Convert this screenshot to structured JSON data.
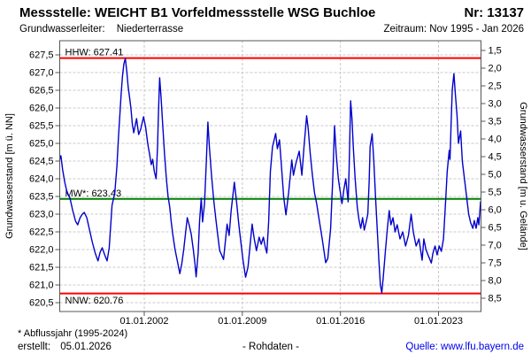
{
  "header": {
    "title": "Messstelle: WEICHT B1 Vorfeldmessstelle WSG Buchloe",
    "number": "Nr: 13137",
    "aquifer_label": "Grundwasserleiter:",
    "aquifer_value": "Niederterrasse",
    "period": "Zeitraum: Nov 1995 - Jan 2026"
  },
  "footer": {
    "footnote": "* Abflussjahr (1995-2024)",
    "created_label": "erstellt:",
    "created_date": "05.01.2026",
    "data_type": "- Rohdaten -",
    "source_label": "Quelle:",
    "source_url": "www.lfu.bayern.de"
  },
  "colors": {
    "curve": "#0000cc",
    "extreme_line": "#ff0000",
    "mean_line": "#008000",
    "grid": "#c8c8c8",
    "frame": "#555555",
    "source_link": "#0000ee"
  },
  "chart_data": {
    "type": "line",
    "ylabel_left": "Grundwasserstand [m ü. NN]",
    "ylabel_right": "Grundwasserstand [m u. Gelände]",
    "xlim": [
      1995.97,
      2026.03
    ],
    "ylim_left": [
      620.25,
      627.9
    ],
    "grid": true,
    "x_ticks": [
      {
        "t": 2002.0,
        "label": "01.01.2002"
      },
      {
        "t": 2009.0,
        "label": "01.01.2009"
      },
      {
        "t": 2016.0,
        "label": "01.01.2016"
      },
      {
        "t": 2023.0,
        "label": "01.01.2023"
      }
    ],
    "y_left_ticks": [
      {
        "v": 627.5,
        "label": "627,5"
      },
      {
        "v": 627.0,
        "label": "627,0"
      },
      {
        "v": 626.5,
        "label": "626,5"
      },
      {
        "v": 626.0,
        "label": "626,0"
      },
      {
        "v": 625.5,
        "label": "625,5"
      },
      {
        "v": 625.0,
        "label": "625,0"
      },
      {
        "v": 624.5,
        "label": "624,5"
      },
      {
        "v": 624.0,
        "label": "624,0"
      },
      {
        "v": 623.5,
        "label": "623,5"
      },
      {
        "v": 623.0,
        "label": "623,0"
      },
      {
        "v": 622.5,
        "label": "622,5"
      },
      {
        "v": 622.0,
        "label": "622,0"
      },
      {
        "v": 621.5,
        "label": "621,5"
      },
      {
        "v": 621.0,
        "label": "621,0"
      },
      {
        "v": 620.5,
        "label": "620,5"
      }
    ],
    "y_right_ticks": [
      {
        "v": 1.5,
        "label": "1,5"
      },
      {
        "v": 2.0,
        "label": "2,0"
      },
      {
        "v": 2.5,
        "label": "2,5"
      },
      {
        "v": 3.0,
        "label": "3,0"
      },
      {
        "v": 3.5,
        "label": "3,5"
      },
      {
        "v": 4.0,
        "label": "4,0"
      },
      {
        "v": 4.5,
        "label": "4,5"
      },
      {
        "v": 5.0,
        "label": "5,0"
      },
      {
        "v": 5.5,
        "label": "5,5"
      },
      {
        "v": 6.0,
        "label": "6,0"
      },
      {
        "v": 6.5,
        "label": "6,5"
      },
      {
        "v": 7.0,
        "label": "7,0"
      },
      {
        "v": 7.5,
        "label": "7,5"
      },
      {
        "v": 8.0,
        "label": "8,0"
      },
      {
        "v": 8.5,
        "label": "8,5"
      }
    ],
    "reference_lines": [
      {
        "name": "hhw",
        "label": "HHW: 627.41",
        "value": 627.41,
        "color": "#ff0000",
        "label_above": true
      },
      {
        "name": "mw",
        "label": "MW*: 623.43",
        "value": 623.43,
        "color": "#008000",
        "label_above": true
      },
      {
        "name": "nnw",
        "label": "NNW: 620.76",
        "value": 620.76,
        "color": "#ff0000",
        "label_above": false
      }
    ],
    "series": [
      {
        "name": "Grundwasserstand Rohdaten",
        "color": "#0000cc",
        "points": [
          [
            1995.97,
            624.55
          ],
          [
            1996.05,
            624.65
          ],
          [
            1996.18,
            624.25
          ],
          [
            1996.33,
            623.9
          ],
          [
            1996.5,
            623.6
          ],
          [
            1996.7,
            623.45
          ],
          [
            1996.9,
            623.1
          ],
          [
            1997.1,
            622.8
          ],
          [
            1997.25,
            622.7
          ],
          [
            1997.42,
            622.9
          ],
          [
            1997.58,
            623.0
          ],
          [
            1997.72,
            623.05
          ],
          [
            1997.9,
            622.9
          ],
          [
            1998.1,
            622.55
          ],
          [
            1998.3,
            622.2
          ],
          [
            1998.5,
            621.9
          ],
          [
            1998.7,
            621.68
          ],
          [
            1998.85,
            621.92
          ],
          [
            1999.0,
            622.05
          ],
          [
            1999.18,
            621.85
          ],
          [
            1999.35,
            621.68
          ],
          [
            1999.5,
            622.05
          ],
          [
            1999.7,
            623.25
          ],
          [
            1999.9,
            623.6
          ],
          [
            2000.05,
            624.35
          ],
          [
            2000.15,
            625.1
          ],
          [
            2000.25,
            625.75
          ],
          [
            2000.35,
            626.4
          ],
          [
            2000.45,
            626.9
          ],
          [
            2000.55,
            627.25
          ],
          [
            2000.65,
            627.4
          ],
          [
            2000.75,
            627.05
          ],
          [
            2000.85,
            626.6
          ],
          [
            2000.95,
            626.3
          ],
          [
            2001.05,
            626.0
          ],
          [
            2001.15,
            625.55
          ],
          [
            2001.25,
            625.3
          ],
          [
            2001.35,
            625.5
          ],
          [
            2001.45,
            625.7
          ],
          [
            2001.6,
            625.25
          ],
          [
            2001.75,
            625.4
          ],
          [
            2001.95,
            625.75
          ],
          [
            2002.1,
            625.45
          ],
          [
            2002.25,
            625.0
          ],
          [
            2002.4,
            624.65
          ],
          [
            2002.5,
            624.4
          ],
          [
            2002.6,
            624.55
          ],
          [
            2002.72,
            624.2
          ],
          [
            2002.85,
            624.0
          ],
          [
            2002.95,
            624.9
          ],
          [
            2003.02,
            625.9
          ],
          [
            2003.1,
            626.85
          ],
          [
            2003.2,
            626.3
          ],
          [
            2003.32,
            625.5
          ],
          [
            2003.45,
            624.7
          ],
          [
            2003.58,
            624.0
          ],
          [
            2003.7,
            623.5
          ],
          [
            2003.82,
            623.2
          ],
          [
            2003.92,
            622.8
          ],
          [
            2004.05,
            622.4
          ],
          [
            2004.2,
            622.0
          ],
          [
            2004.35,
            621.7
          ],
          [
            2004.54,
            621.32
          ],
          [
            2004.68,
            621.6
          ],
          [
            2004.82,
            622.0
          ],
          [
            2005.07,
            622.9
          ],
          [
            2005.2,
            622.7
          ],
          [
            2005.35,
            622.45
          ],
          [
            2005.5,
            622.0
          ],
          [
            2005.62,
            621.6
          ],
          [
            2005.7,
            621.23
          ],
          [
            2005.85,
            621.9
          ],
          [
            2005.95,
            622.8
          ],
          [
            2006.07,
            623.45
          ],
          [
            2006.16,
            622.78
          ],
          [
            2006.3,
            623.3
          ],
          [
            2006.42,
            624.4
          ],
          [
            2006.54,
            625.6
          ],
          [
            2006.65,
            624.9
          ],
          [
            2006.8,
            624.1
          ],
          [
            2006.96,
            623.4
          ],
          [
            2007.1,
            622.9
          ],
          [
            2007.25,
            622.4
          ],
          [
            2007.38,
            621.97
          ],
          [
            2007.52,
            621.85
          ],
          [
            2007.66,
            621.72
          ],
          [
            2007.91,
            622.72
          ],
          [
            2008.06,
            622.4
          ],
          [
            2008.2,
            623.1
          ],
          [
            2008.43,
            623.9
          ],
          [
            2008.6,
            623.3
          ],
          [
            2008.75,
            622.7
          ],
          [
            2008.9,
            622.2
          ],
          [
            2009.05,
            621.7
          ],
          [
            2009.23,
            621.22
          ],
          [
            2009.4,
            621.5
          ],
          [
            2009.55,
            622.1
          ],
          [
            2009.7,
            622.72
          ],
          [
            2009.85,
            622.3
          ],
          [
            2010.01,
            621.97
          ],
          [
            2010.2,
            622.35
          ],
          [
            2010.35,
            622.15
          ],
          [
            2010.5,
            622.35
          ],
          [
            2010.62,
            622.1
          ],
          [
            2010.75,
            621.9
          ],
          [
            2010.88,
            622.8
          ],
          [
            2011.0,
            624.2
          ],
          [
            2011.15,
            624.9
          ],
          [
            2011.38,
            625.28
          ],
          [
            2011.5,
            624.85
          ],
          [
            2011.65,
            625.1
          ],
          [
            2011.8,
            624.3
          ],
          [
            2011.95,
            623.5
          ],
          [
            2012.11,
            622.98
          ],
          [
            2012.3,
            623.6
          ],
          [
            2012.53,
            624.53
          ],
          [
            2012.65,
            624.1
          ],
          [
            2012.8,
            624.4
          ],
          [
            2013.06,
            624.78
          ],
          [
            2013.25,
            624.1
          ],
          [
            2013.4,
            624.9
          ],
          [
            2013.59,
            625.78
          ],
          [
            2013.7,
            625.4
          ],
          [
            2013.85,
            624.7
          ],
          [
            2014.0,
            624.1
          ],
          [
            2014.15,
            623.6
          ],
          [
            2014.3,
            623.3
          ],
          [
            2014.5,
            622.8
          ],
          [
            2014.7,
            622.3
          ],
          [
            2014.95,
            621.63
          ],
          [
            2015.1,
            621.75
          ],
          [
            2015.3,
            622.6
          ],
          [
            2015.45,
            624.0
          ],
          [
            2015.58,
            625.5
          ],
          [
            2015.7,
            624.7
          ],
          [
            2015.85,
            624.0
          ],
          [
            2016.11,
            623.3
          ],
          [
            2016.25,
            623.7
          ],
          [
            2016.38,
            624.0
          ],
          [
            2016.55,
            623.35
          ],
          [
            2016.62,
            624.3
          ],
          [
            2016.73,
            626.2
          ],
          [
            2016.82,
            625.7
          ],
          [
            2016.92,
            624.9
          ],
          [
            2017.05,
            624.0
          ],
          [
            2017.2,
            623.2
          ],
          [
            2017.32,
            622.85
          ],
          [
            2017.45,
            622.6
          ],
          [
            2017.58,
            622.9
          ],
          [
            2017.7,
            622.55
          ],
          [
            2017.82,
            622.75
          ],
          [
            2017.95,
            623.0
          ],
          [
            2018.05,
            623.9
          ],
          [
            2018.12,
            624.9
          ],
          [
            2018.26,
            625.27
          ],
          [
            2018.38,
            624.5
          ],
          [
            2018.5,
            623.5
          ],
          [
            2018.62,
            622.6
          ],
          [
            2018.74,
            621.7
          ],
          [
            2018.85,
            621.0
          ],
          [
            2018.95,
            620.78
          ],
          [
            2019.05,
            621.2
          ],
          [
            2019.2,
            621.9
          ],
          [
            2019.35,
            622.6
          ],
          [
            2019.48,
            623.1
          ],
          [
            2019.6,
            622.7
          ],
          [
            2019.75,
            622.9
          ],
          [
            2019.9,
            622.5
          ],
          [
            2020.05,
            622.7
          ],
          [
            2020.25,
            622.3
          ],
          [
            2020.45,
            622.5
          ],
          [
            2020.65,
            622.1
          ],
          [
            2020.85,
            622.4
          ],
          [
            2021.05,
            623.0
          ],
          [
            2021.2,
            622.5
          ],
          [
            2021.4,
            622.1
          ],
          [
            2021.6,
            622.3
          ],
          [
            2021.83,
            621.7
          ],
          [
            2021.95,
            622.3
          ],
          [
            2022.1,
            622.0
          ],
          [
            2022.25,
            621.85
          ],
          [
            2022.49,
            621.62
          ],
          [
            2022.6,
            621.9
          ],
          [
            2022.75,
            622.1
          ],
          [
            2022.9,
            621.85
          ],
          [
            2023.05,
            622.1
          ],
          [
            2023.2,
            621.95
          ],
          [
            2023.35,
            622.3
          ],
          [
            2023.51,
            623.4
          ],
          [
            2023.62,
            624.2
          ],
          [
            2023.76,
            624.8
          ],
          [
            2023.82,
            624.55
          ],
          [
            2023.9,
            625.6
          ],
          [
            2023.98,
            626.5
          ],
          [
            2024.1,
            626.97
          ],
          [
            2024.2,
            626.4
          ],
          [
            2024.32,
            625.8
          ],
          [
            2024.42,
            625.0
          ],
          [
            2024.58,
            625.35
          ],
          [
            2024.7,
            624.5
          ],
          [
            2024.85,
            624.0
          ],
          [
            2025.0,
            623.5
          ],
          [
            2025.15,
            623.0
          ],
          [
            2025.3,
            622.75
          ],
          [
            2025.45,
            622.6
          ],
          [
            2025.55,
            622.82
          ],
          [
            2025.68,
            622.6
          ],
          [
            2025.8,
            622.9
          ],
          [
            2025.88,
            622.7
          ],
          [
            2026.0,
            623.35
          ]
        ]
      }
    ]
  }
}
